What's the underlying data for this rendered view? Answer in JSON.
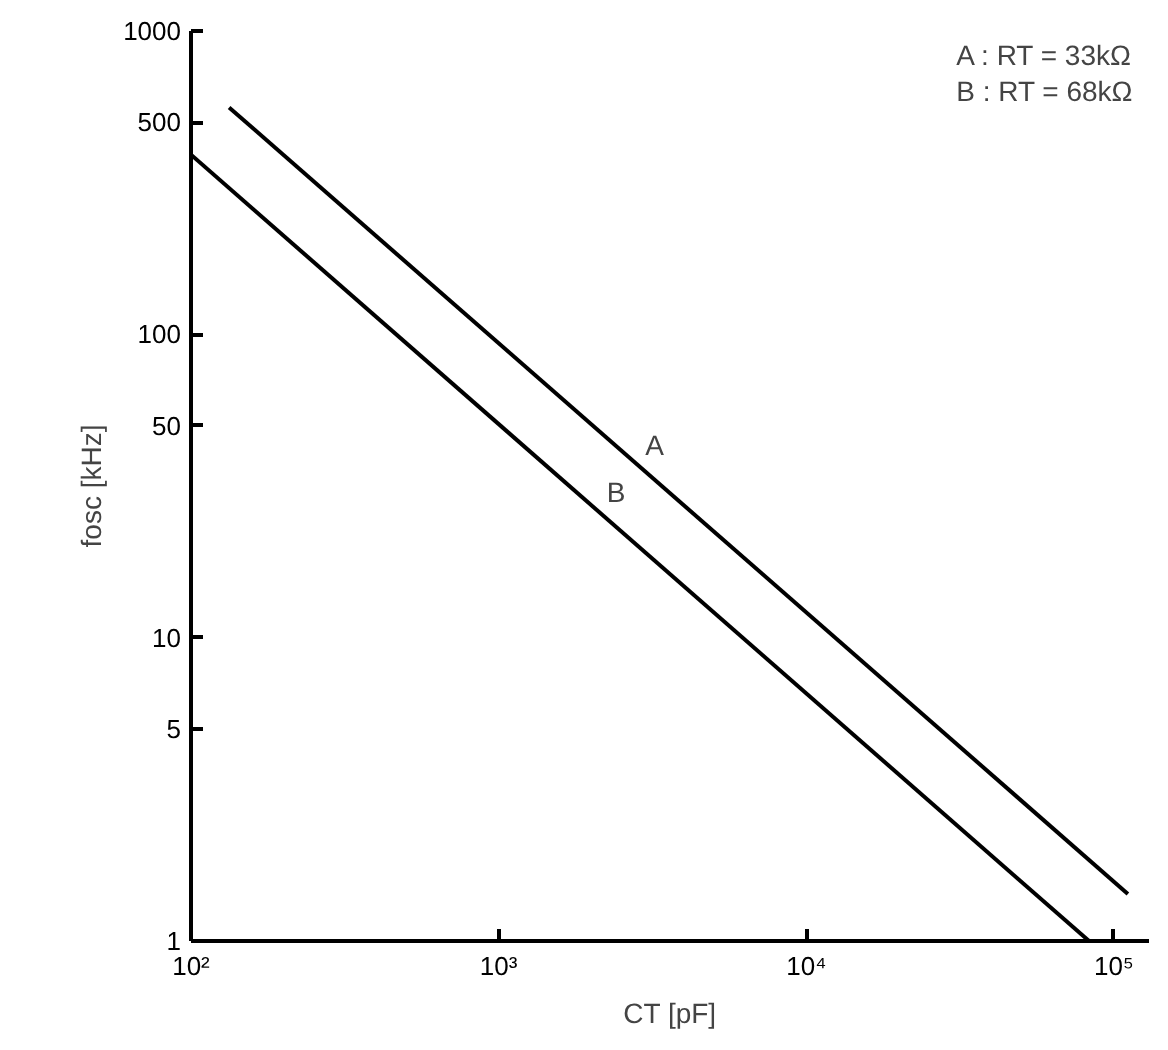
{
  "chart_data": {
    "type": "line",
    "xlabel": "CT [pF]",
    "ylabel": "fosc [kHz]",
    "log": "xy",
    "grid": false,
    "marker": "none",
    "line_style": "solid",
    "legend": false,
    "xlim": [
      100,
      130000
    ],
    "ylim": [
      1,
      1000
    ],
    "xticks": [
      {
        "value": 100,
        "label": "10²"
      },
      {
        "value": 1000,
        "label": "10³"
      },
      {
        "value": 10000,
        "label": "10⁴"
      },
      {
        "value": 100000,
        "label": "10⁵"
      }
    ],
    "yticks": [
      1,
      5,
      10,
      50,
      100,
      500,
      1000
    ],
    "series": [
      {
        "name": "A",
        "color": "#000000",
        "x": [
          133,
          111000
        ],
        "values": [
          560,
          1.43
        ]
      },
      {
        "name": "B",
        "color": "#000000",
        "x": [
          100,
          83000
        ],
        "values": [
          391,
          1
        ]
      }
    ],
    "annotations": [
      "A : RT = 33kΩ",
      "B : RT = 68kΩ"
    ]
  }
}
